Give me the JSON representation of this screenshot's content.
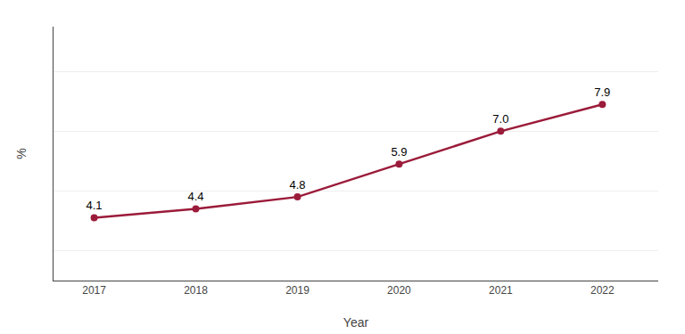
{
  "chart_data": {
    "type": "line",
    "x": [
      2017,
      2018,
      2019,
      2020,
      2021,
      2022
    ],
    "values": [
      4.1,
      4.4,
      4.8,
      5.9,
      7.0,
      7.9
    ],
    "value_labels": [
      "4.1",
      "4.4",
      "4.8",
      "5.9",
      "7.0",
      "7.9"
    ],
    "data_labels": true,
    "color": "#9B1B3A",
    "marker": "circle",
    "xlabel": "Year",
    "ylabel": "%",
    "xlim": [
      2016.6,
      2022.55
    ],
    "xticks": [
      2017,
      2018,
      2019,
      2020,
      2021,
      2022
    ],
    "ylim": [
      2.0,
      10.5
    ],
    "yticks": [
      3,
      5,
      7,
      9
    ],
    "tick_labels": "x",
    "grid": true
  }
}
